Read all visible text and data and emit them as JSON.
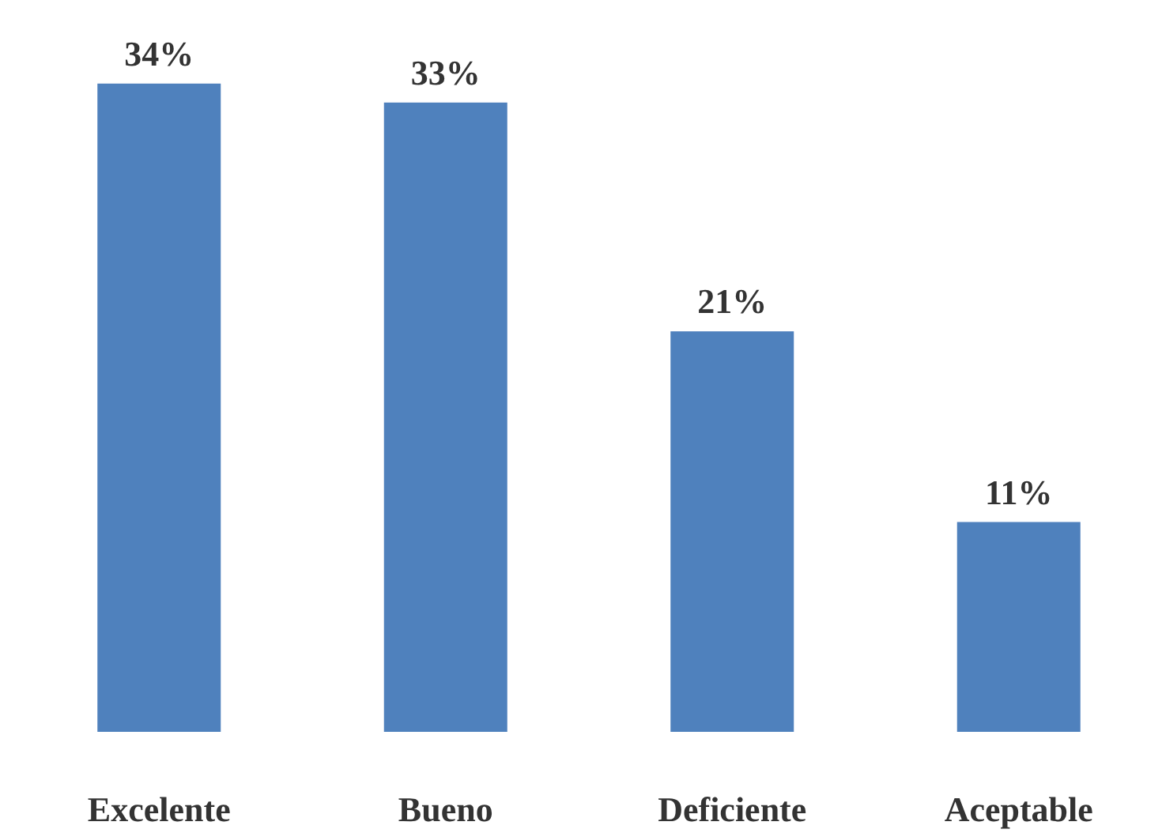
{
  "chart_data": {
    "type": "bar",
    "categories": [
      "Excelente",
      "Bueno",
      "Deficiente",
      "Aceptable"
    ],
    "values": [
      34,
      33,
      21,
      11
    ],
    "value_labels": [
      "34%",
      "33%",
      "21%",
      "11%"
    ],
    "color": "#4f81bd"
  }
}
